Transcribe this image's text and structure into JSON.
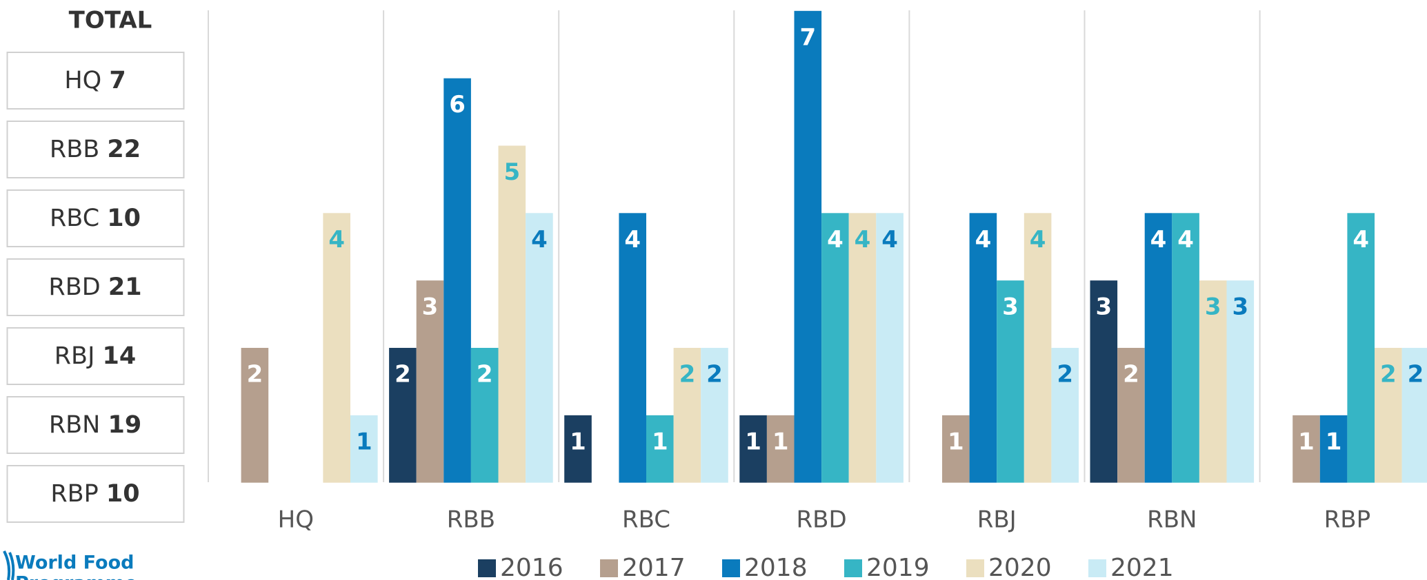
{
  "chart_data": {
    "type": "bar",
    "categories": [
      "HQ",
      "RBB",
      "RBC",
      "RBD",
      "RBJ",
      "RBN",
      "RBP"
    ],
    "series": [
      {
        "name": "2016",
        "color": "#1b3f61",
        "label_color": "#ffffff",
        "values": [
          0,
          2,
          1,
          1,
          0,
          3,
          0
        ]
      },
      {
        "name": "2017",
        "color": "#b59f8e",
        "label_color": "#ffffff",
        "values": [
          2,
          3,
          0,
          1,
          1,
          2,
          1
        ]
      },
      {
        "name": "2018",
        "color": "#0a7bbd",
        "label_color": "#ffffff",
        "values": [
          0,
          6,
          4,
          7,
          4,
          4,
          1
        ]
      },
      {
        "name": "2019",
        "color": "#36b5c5",
        "label_color": "#ffffff",
        "values": [
          0,
          2,
          1,
          4,
          3,
          4,
          4
        ]
      },
      {
        "name": "2020",
        "color": "#ebdfbf",
        "label_color": "#36b5c5",
        "values": [
          4,
          5,
          2,
          4,
          4,
          3,
          2
        ]
      },
      {
        "name": "2021",
        "color": "#c9ebf5",
        "label_color": "#0a7bbd",
        "values": [
          1,
          4,
          2,
          4,
          2,
          3,
          2
        ]
      }
    ],
    "ylim": [
      0,
      7
    ],
    "totals_title": "TOTAL",
    "totals": [
      {
        "label": "HQ",
        "value": 7
      },
      {
        "label": "RBB",
        "value": 22
      },
      {
        "label": "RBC",
        "value": 10
      },
      {
        "label": "RBD",
        "value": 21
      },
      {
        "label": "RBJ",
        "value": 14
      },
      {
        "label": "RBN",
        "value": 19
      },
      {
        "label": "RBP",
        "value": 10
      }
    ],
    "logo": [
      "World Food",
      "Programme"
    ]
  }
}
